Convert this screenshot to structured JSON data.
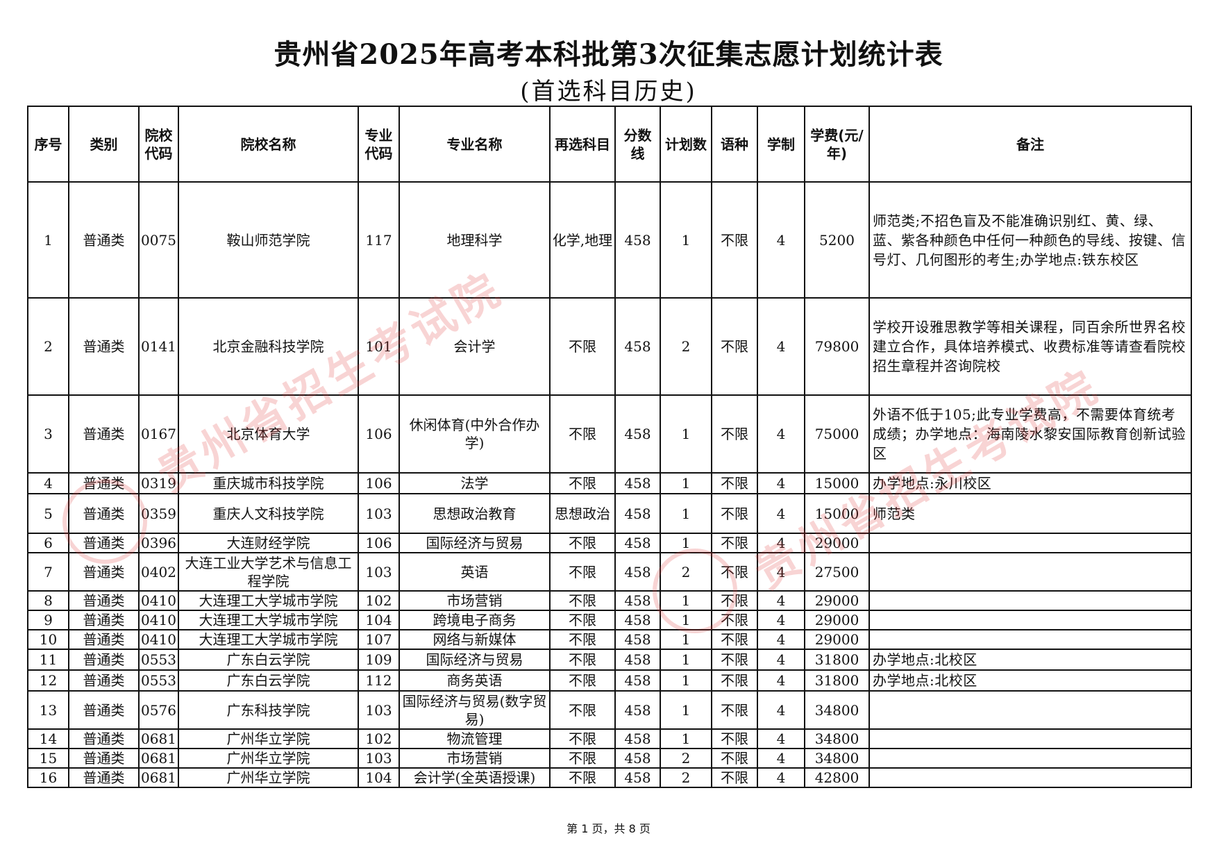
{
  "document": {
    "title": "贵州省2025年高考本科批第3次征集志愿计划统计表",
    "subtitle": "(首选科目历史)",
    "footer": "第 1 页，共 8 页",
    "watermark_text": "贵州省招生考试院",
    "watermark_color": "#e13c3c"
  },
  "table": {
    "headers": [
      "序号",
      "类别",
      "院校代码",
      "院校名称",
      "专业代码",
      "专业名称",
      "再选科目",
      "分数线",
      "计划数",
      "语种",
      "学制",
      "学费(元/年)",
      "备注"
    ],
    "rows": [
      [
        "1",
        "普通类",
        "0075",
        "鞍山师范学院",
        "117",
        "地理科学",
        "化学,地理",
        "458",
        "1",
        "不限",
        "4",
        "5200",
        "师范类;不招色盲及不能准确识别红、黄、绿、蓝、紫各种颜色中任何一种颜色的导线、按键、信号灯、几何图形的考生;办学地点:铁东校区"
      ],
      [
        "2",
        "普通类",
        "0141",
        "北京金融科技学院",
        "101",
        "会计学",
        "不限",
        "458",
        "2",
        "不限",
        "4",
        "79800",
        "学校开设雅思教学等相关课程，同百余所世界名校建立合作，具体培养模式、收费标准等请查看院校招生章程并咨询院校"
      ],
      [
        "3",
        "普通类",
        "0167",
        "北京体育大学",
        "106",
        "休闲体育(中外合作办学)",
        "不限",
        "458",
        "1",
        "不限",
        "4",
        "75000",
        "外语不低于105;此专业学费高，不需要体育统考成绩；办学地点：海南陵水黎安国际教育创新试验区"
      ],
      [
        "4",
        "普通类",
        "0319",
        "重庆城市科技学院",
        "106",
        "法学",
        "不限",
        "458",
        "1",
        "不限",
        "4",
        "15000",
        "办学地点:永川校区"
      ],
      [
        "5",
        "普通类",
        "0359",
        "重庆人文科技学院",
        "103",
        "思想政治教育",
        "思想政治",
        "458",
        "1",
        "不限",
        "4",
        "15000",
        "师范类"
      ],
      [
        "6",
        "普通类",
        "0396",
        "大连财经学院",
        "106",
        "国际经济与贸易",
        "不限",
        "458",
        "1",
        "不限",
        "4",
        "29000",
        ""
      ],
      [
        "7",
        "普通类",
        "0402",
        "大连工业大学艺术与信息工程学院",
        "103",
        "英语",
        "不限",
        "458",
        "2",
        "不限",
        "4",
        "27500",
        ""
      ],
      [
        "8",
        "普通类",
        "0410",
        "大连理工大学城市学院",
        "102",
        "市场营销",
        "不限",
        "458",
        "1",
        "不限",
        "4",
        "29000",
        ""
      ],
      [
        "9",
        "普通类",
        "0410",
        "大连理工大学城市学院",
        "104",
        "跨境电子商务",
        "不限",
        "458",
        "1",
        "不限",
        "4",
        "29000",
        ""
      ],
      [
        "10",
        "普通类",
        "0410",
        "大连理工大学城市学院",
        "107",
        "网络与新媒体",
        "不限",
        "458",
        "1",
        "不限",
        "4",
        "29000",
        ""
      ],
      [
        "11",
        "普通类",
        "0553",
        "广东白云学院",
        "109",
        "国际经济与贸易",
        "不限",
        "458",
        "1",
        "不限",
        "4",
        "31800",
        "办学地点:北校区"
      ],
      [
        "12",
        "普通类",
        "0553",
        "广东白云学院",
        "112",
        "商务英语",
        "不限",
        "458",
        "1",
        "不限",
        "4",
        "31800",
        "办学地点:北校区"
      ],
      [
        "13",
        "普通类",
        "0576",
        "广东科技学院",
        "103",
        "国际经济与贸易(数字贸易)",
        "不限",
        "458",
        "1",
        "不限",
        "4",
        "34800",
        ""
      ],
      [
        "14",
        "普通类",
        "0681",
        "广州华立学院",
        "102",
        "物流管理",
        "不限",
        "458",
        "1",
        "不限",
        "4",
        "34800",
        ""
      ],
      [
        "15",
        "普通类",
        "0681",
        "广州华立学院",
        "103",
        "市场营销",
        "不限",
        "458",
        "2",
        "不限",
        "4",
        "34800",
        ""
      ],
      [
        "16",
        "普通类",
        "0681",
        "广州华立学院",
        "104",
        "会计学(全英语授课)",
        "不限",
        "458",
        "2",
        "不限",
        "4",
        "42800",
        ""
      ]
    ]
  }
}
